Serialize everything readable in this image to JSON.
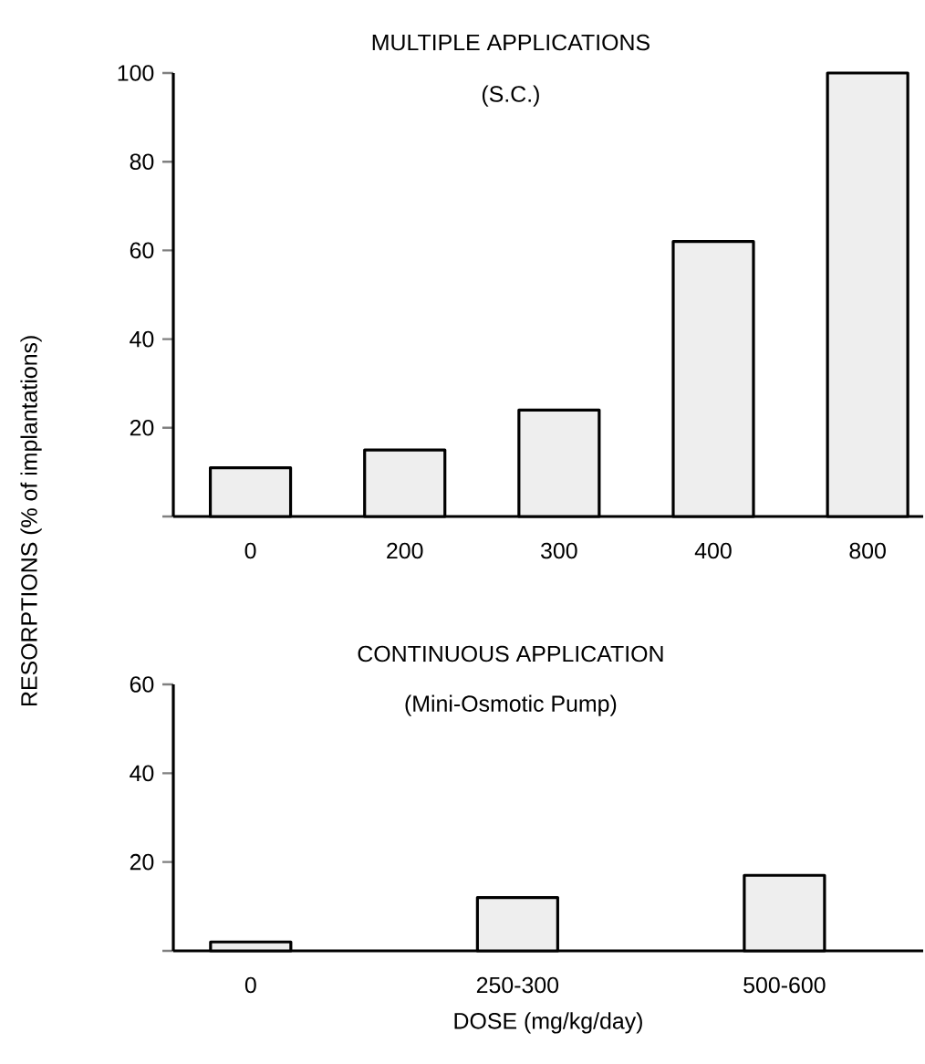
{
  "chart_data": [
    {
      "type": "bar",
      "title": "MULTIPLE APPLICATIONS",
      "subtitle": "(S.C.)",
      "ylabel": "RESORPTIONS (% of implantations)",
      "categories": [
        "0",
        "200",
        "300",
        "400",
        "800"
      ],
      "values": [
        11,
        15,
        24,
        62,
        100
      ],
      "color": "#eeeeee",
      "ylim": [
        0,
        100
      ],
      "yticks": [
        {
          "value": 0,
          "label": null
        },
        20,
        40,
        60,
        80,
        100
      ]
    },
    {
      "type": "bar",
      "title": "CONTINUOUS APPLICATION",
      "subtitle": "(Mini-Osmotic Pump)",
      "xlabel": "DOSE (mg/kg/day)",
      "categories": [
        "0",
        "250-300",
        "500-600"
      ],
      "values": [
        2,
        12,
        17
      ],
      "color": "#eeeeee",
      "ylim": [
        0,
        60
      ],
      "yticks": [
        {
          "value": 0,
          "label": null
        },
        20,
        40,
        60
      ]
    }
  ]
}
